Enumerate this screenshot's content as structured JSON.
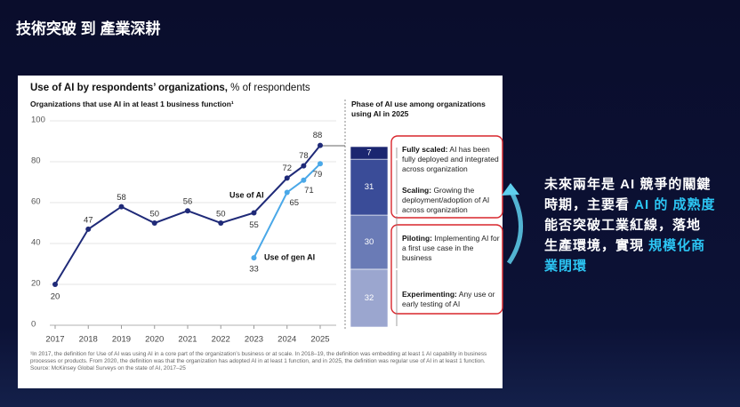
{
  "slide_title": "技術突破 到 產業深耕",
  "callout": {
    "lines": [
      [
        {
          "text": "未來兩年是 AI 競爭的關鍵",
          "highlight": false
        }
      ],
      [
        {
          "text": "時期，主要看 ",
          "highlight": false
        },
        {
          "text": "AI 的 成熟度",
          "highlight": true
        }
      ],
      [
        {
          "text": "能否突破工業紅線，落地",
          "highlight": false
        }
      ],
      [
        {
          "text": "生產環境，實現 ",
          "highlight": false
        },
        {
          "text": "規模化商",
          "highlight": true
        }
      ],
      [
        {
          "text": "業閉環",
          "highlight": true
        }
      ]
    ]
  },
  "chart_data": [
    {
      "type": "line",
      "title": "Use of AI by respondents’ organizations,",
      "title_unit": "% of respondents",
      "subtitle": "Organizations that use AI in at least 1 business function¹",
      "x": [
        2017,
        2018,
        2019,
        2020,
        2021,
        2022,
        2023,
        2024,
        2024.5,
        2025
      ],
      "xlim": [
        2017,
        2025
      ],
      "xticks": [
        2017,
        2018,
        2019,
        2020,
        2021,
        2022,
        2023,
        2024,
        2025
      ],
      "ylim": [
        0,
        100
      ],
      "yticks": [
        0,
        20,
        40,
        60,
        80,
        100
      ],
      "grid": true,
      "series": [
        {
          "name": "Use of AI",
          "color": "#1f2a78",
          "values": [
            20,
            47,
            58,
            50,
            56,
            50,
            55,
            72,
            78,
            88
          ]
        },
        {
          "name": "Use of gen AI",
          "color": "#4aa8e8",
          "values": [
            null,
            null,
            null,
            null,
            null,
            null,
            33,
            65,
            71,
            79
          ]
        }
      ],
      "footnote": "¹In 2017, the definition for Use of AI was using AI in a core part of the organization’s business or at scale. In 2018–19, the definition was embedding at least 1 AI capability in business processes or products. From 2020, the definition was that the organization has adopted AI in at least 1 function, and in 2025, the definition was regular use of AI in at least 1 function.",
      "source": "Source: McKinsey Global Surveys on the state of AI, 2017–25"
    },
    {
      "type": "bar",
      "stacked": true,
      "title": "Phase of AI use among organizations using AI in 2025",
      "categories": [
        null
      ],
      "ylim": [
        0,
        100
      ],
      "series": [
        {
          "name": "Fully scaled:",
          "description": "AI has been fully deployed and integrated across organization",
          "color": "#1b2670",
          "values": [
            7
          ]
        },
        {
          "name": "Scaling:",
          "description": "Growing the deployment/adoption of AI across organization",
          "color": "#3a4c98",
          "values": [
            31
          ]
        },
        {
          "name": "Piloting:",
          "description": "Implementing AI for a first use case in the business",
          "color": "#6a7bb6",
          "values": [
            30
          ]
        },
        {
          "name": "Experimenting:",
          "description": "Any use or early testing of AI",
          "color": "#9ba6cf",
          "values": [
            32
          ]
        }
      ]
    }
  ]
}
